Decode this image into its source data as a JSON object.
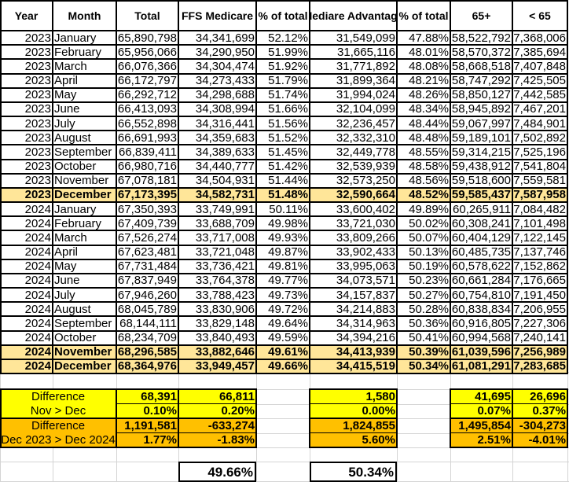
{
  "header": {
    "year": "Year",
    "month": "Month",
    "total": "Total",
    "ffs": "FFS Medicare",
    "ffs_pct": "% of total",
    "ma": "Mediare Advantage",
    "ma_pct": "% of total",
    "over65": "65+",
    "under65": "< 65"
  },
  "rows": [
    {
      "year": "2023",
      "month": "January",
      "total": "65,890,798",
      "ffs": "34,341,699",
      "ffs_pct": "52.12%",
      "ma": "31,549,099",
      "ma_pct": "47.88%",
      "over65": "58,522,792",
      "under65": "7,368,006",
      "highlight": false
    },
    {
      "year": "2023",
      "month": "February",
      "total": "65,956,066",
      "ffs": "34,290,950",
      "ffs_pct": "51.99%",
      "ma": "31,665,116",
      "ma_pct": "48.01%",
      "over65": "58,570,372",
      "under65": "7,385,694",
      "highlight": false
    },
    {
      "year": "2023",
      "month": "March",
      "total": "66,076,366",
      "ffs": "34,304,474",
      "ffs_pct": "51.92%",
      "ma": "31,771,892",
      "ma_pct": "48.08%",
      "over65": "58,668,518",
      "under65": "7,407,848",
      "highlight": false
    },
    {
      "year": "2023",
      "month": "April",
      "total": "66,172,797",
      "ffs": "34,273,433",
      "ffs_pct": "51.79%",
      "ma": "31,899,364",
      "ma_pct": "48.21%",
      "over65": "58,747,292",
      "under65": "7,425,505",
      "highlight": false
    },
    {
      "year": "2023",
      "month": "May",
      "total": "66,292,712",
      "ffs": "34,298,688",
      "ffs_pct": "51.74%",
      "ma": "31,994,024",
      "ma_pct": "48.26%",
      "over65": "58,850,127",
      "under65": "7,442,585",
      "highlight": false
    },
    {
      "year": "2023",
      "month": "June",
      "total": "66,413,093",
      "ffs": "34,308,994",
      "ffs_pct": "51.66%",
      "ma": "32,104,099",
      "ma_pct": "48.34%",
      "over65": "58,945,892",
      "under65": "7,467,201",
      "highlight": false
    },
    {
      "year": "2023",
      "month": "July",
      "total": "66,552,898",
      "ffs": "34,316,441",
      "ffs_pct": "51.56%",
      "ma": "32,236,457",
      "ma_pct": "48.44%",
      "over65": "59,067,997",
      "under65": "7,484,901",
      "highlight": false
    },
    {
      "year": "2023",
      "month": "August",
      "total": "66,691,993",
      "ffs": "34,359,683",
      "ffs_pct": "51.52%",
      "ma": "32,332,310",
      "ma_pct": "48.48%",
      "over65": "59,189,101",
      "under65": "7,502,892",
      "highlight": false
    },
    {
      "year": "2023",
      "month": "September",
      "total": "66,839,411",
      "ffs": "34,389,633",
      "ffs_pct": "51.45%",
      "ma": "32,449,778",
      "ma_pct": "48.55%",
      "over65": "59,314,215",
      "under65": "7,525,196",
      "highlight": false
    },
    {
      "year": "2023",
      "month": "October",
      "total": "66,980,716",
      "ffs": "34,440,777",
      "ffs_pct": "51.42%",
      "ma": "32,539,939",
      "ma_pct": "48.58%",
      "over65": "59,438,912",
      "under65": "7,541,804",
      "highlight": false
    },
    {
      "year": "2023",
      "month": "November",
      "total": "67,078,181",
      "ffs": "34,504,931",
      "ffs_pct": "51.44%",
      "ma": "32,573,250",
      "ma_pct": "48.56%",
      "over65": "59,518,600",
      "under65": "7,559,581",
      "highlight": false
    },
    {
      "year": "2023",
      "month": "December",
      "total": "67,173,395",
      "ffs": "34,582,731",
      "ffs_pct": "51.48%",
      "ma": "32,590,664",
      "ma_pct": "48.52%",
      "over65": "59,585,437",
      "under65": "7,587,958",
      "highlight": true
    },
    {
      "year": "2024",
      "month": "January",
      "total": "67,350,393",
      "ffs": "33,749,991",
      "ffs_pct": "50.11%",
      "ma": "33,600,402",
      "ma_pct": "49.89%",
      "over65": "60,265,911",
      "under65": "7,084,482",
      "highlight": false
    },
    {
      "year": "2024",
      "month": "February",
      "total": "67,409,739",
      "ffs": "33,688,709",
      "ffs_pct": "49.98%",
      "ma": "33,721,030",
      "ma_pct": "50.02%",
      "over65": "60,308,241",
      "under65": "7,101,498",
      "highlight": false
    },
    {
      "year": "2024",
      "month": "March",
      "total": "67,526,274",
      "ffs": "33,717,008",
      "ffs_pct": "49.93%",
      "ma": "33,809,266",
      "ma_pct": "50.07%",
      "over65": "60,404,129",
      "under65": "7,122,145",
      "highlight": false
    },
    {
      "year": "2024",
      "month": "April",
      "total": "67,623,481",
      "ffs": "33,721,048",
      "ffs_pct": "49.87%",
      "ma": "33,902,433",
      "ma_pct": "50.13%",
      "over65": "60,485,735",
      "under65": "7,137,746",
      "highlight": false
    },
    {
      "year": "2024",
      "month": "May",
      "total": "67,731,484",
      "ffs": "33,736,421",
      "ffs_pct": "49.81%",
      "ma": "33,995,063",
      "ma_pct": "50.19%",
      "over65": "60,578,622",
      "under65": "7,152,862",
      "highlight": false
    },
    {
      "year": "2024",
      "month": "June",
      "total": "67,837,949",
      "ffs": "33,764,378",
      "ffs_pct": "49.77%",
      "ma": "34,073,571",
      "ma_pct": "50.23%",
      "over65": "60,661,284",
      "under65": "7,176,665",
      "highlight": false
    },
    {
      "year": "2024",
      "month": "July",
      "total": "67,946,260",
      "ffs": "33,788,423",
      "ffs_pct": "49.73%",
      "ma": "34,157,837",
      "ma_pct": "50.27%",
      "over65": "60,754,810",
      "under65": "7,191,450",
      "highlight": false
    },
    {
      "year": "2024",
      "month": "August",
      "total": "68,045,789",
      "ffs": "33,830,906",
      "ffs_pct": "49.72%",
      "ma": "34,214,883",
      "ma_pct": "50.28%",
      "over65": "60,838,834",
      "under65": "7,206,955",
      "highlight": false
    },
    {
      "year": "2024",
      "month": "September",
      "total": "68,144,111",
      "ffs": "33,829,148",
      "ffs_pct": "49.64%",
      "ma": "34,314,963",
      "ma_pct": "50.36%",
      "over65": "60,916,805",
      "under65": "7,227,306",
      "highlight": false
    },
    {
      "year": "2024",
      "month": "October",
      "total": "68,234,709",
      "ffs": "33,840,493",
      "ffs_pct": "49.59%",
      "ma": "34,394,216",
      "ma_pct": "50.41%",
      "over65": "60,994,568",
      "under65": "7,240,141",
      "highlight": false
    },
    {
      "year": "2024",
      "month": "November",
      "total": "68,296,585",
      "ffs": "33,882,646",
      "ffs_pct": "49.61%",
      "ma": "34,413,939",
      "ma_pct": "50.39%",
      "over65": "61,039,596",
      "under65": "7,256,989",
      "highlight": true
    },
    {
      "year": "2024",
      "month": "December",
      "total": "68,364,976",
      "ffs": "33,949,457",
      "ffs_pct": "49.66%",
      "ma": "34,415,519",
      "ma_pct": "50.34%",
      "over65": "61,081,291",
      "under65": "7,283,685",
      "highlight": true
    }
  ],
  "differences": [
    {
      "label_line1": "Difference",
      "label_line2": "Nov > Dec",
      "color": "#ffff00",
      "total": "68,391",
      "total_pct": "0.10%",
      "ffs": "66,811",
      "ffs_pct": "0.20%",
      "ma": "1,580",
      "ma_pct": "0.00%",
      "over65": "41,695",
      "over65_pct": "0.07%",
      "under65": "26,696",
      "under65_pct": "0.37%"
    },
    {
      "label_line1": "Difference",
      "label_line2": "Dec 2023 > Dec 2024",
      "color": "#ffc000",
      "total": "1,191,581",
      "total_pct": "1.77%",
      "ffs": "-633,274",
      "ffs_pct": "-1.83%",
      "ma": "1,824,855",
      "ma_pct": "5.60%",
      "over65": "1,495,854",
      "over65_pct": "2.51%",
      "under65": "-304,273",
      "under65_pct": "-4.01%"
    }
  ],
  "summary": {
    "ffs_share": "49.66%",
    "ma_share": "50.34%"
  },
  "colors": {
    "highlight_row": "#ffe699",
    "yellow": "#ffff00",
    "orange": "#ffc000"
  }
}
